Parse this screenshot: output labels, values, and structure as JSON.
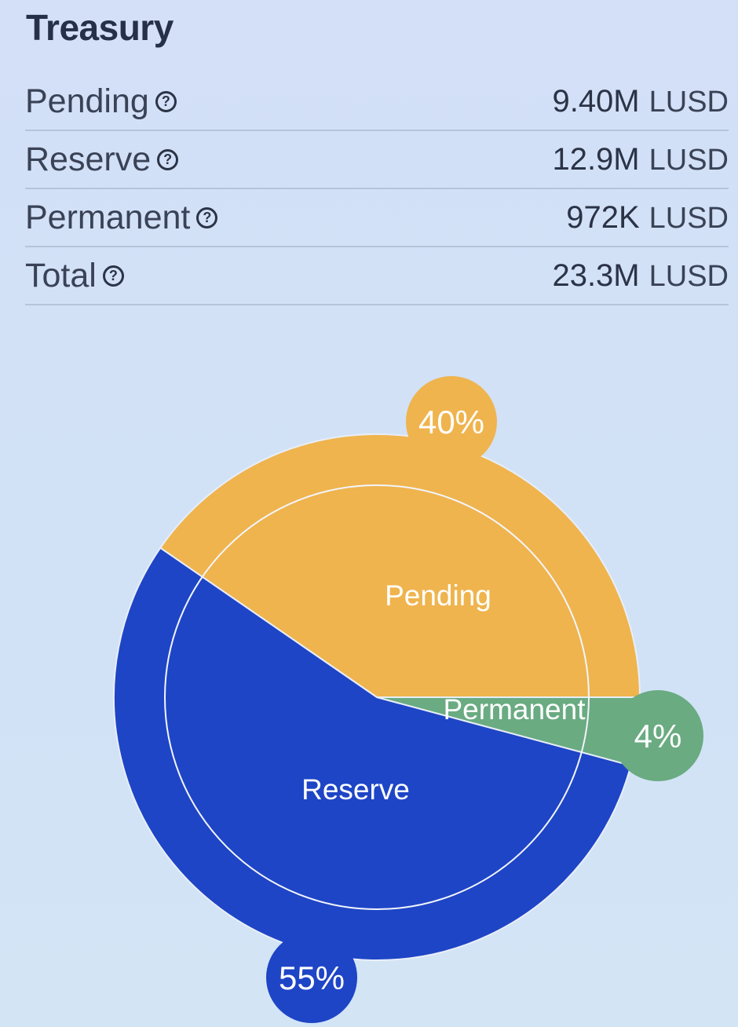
{
  "title": "Treasury",
  "rows": [
    {
      "label": "Pending",
      "value": "9.40M",
      "unit": "LUSD"
    },
    {
      "label": "Reserve",
      "value": "12.9M",
      "unit": "LUSD"
    },
    {
      "label": "Permanent",
      "value": "972K",
      "unit": "LUSD"
    },
    {
      "label": "Total",
      "value": "23.3M",
      "unit": "LUSD"
    }
  ],
  "help_icon": "question-circle-icon",
  "chart_data": {
    "type": "pie",
    "categories": [
      "Pending",
      "Reserve",
      "Permanent"
    ],
    "values": [
      9.4,
      12.9,
      0.972
    ],
    "unit": "M LUSD",
    "percent_labels": [
      "40%",
      "55%",
      "4%"
    ],
    "colors": [
      "#efb44e",
      "#1e45c6",
      "#6aab82"
    ]
  }
}
